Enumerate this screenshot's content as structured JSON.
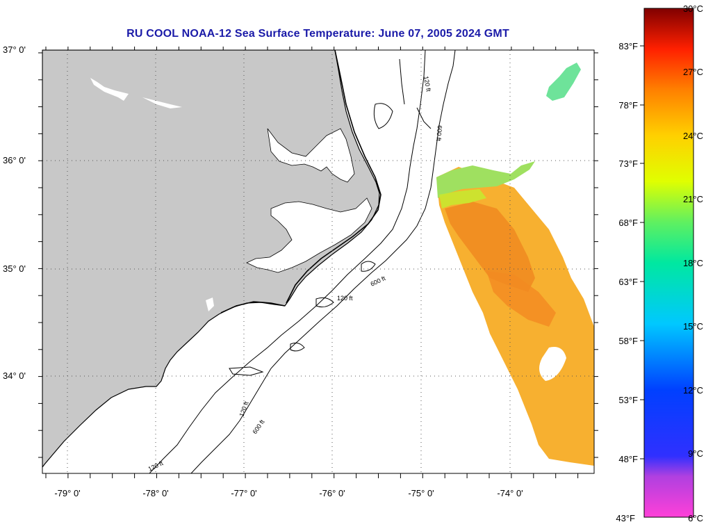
{
  "title": "RU COOL  NOAA-12  Sea Surface Temperature:  June 07, 2005 2024 GMT",
  "map": {
    "lat_labels": [
      "37° 0'",
      "36° 0'",
      "35° 0'",
      "34° 0'"
    ],
    "lon_labels": [
      "-79° 0'",
      "-78° 0'",
      "-77° 0'",
      "-76° 0'",
      "-75° 0'",
      "-74° 0'"
    ],
    "contour_labels": [
      "120 ft",
      "600 ft"
    ],
    "land_color": "#c8c8c8",
    "grid": "dotted"
  },
  "colorbar": {
    "fahrenheit_labels": [
      "83°F",
      "78°F",
      "73°F",
      "68°F",
      "63°F",
      "58°F",
      "53°F",
      "48°F",
      "43°F"
    ],
    "celsius_labels": [
      "30°C",
      "27°C",
      "24°C",
      "21°C",
      "18°C",
      "15°C",
      "12°C",
      "9°C",
      "6°C"
    ],
    "range_celsius": [
      6,
      30
    ]
  }
}
